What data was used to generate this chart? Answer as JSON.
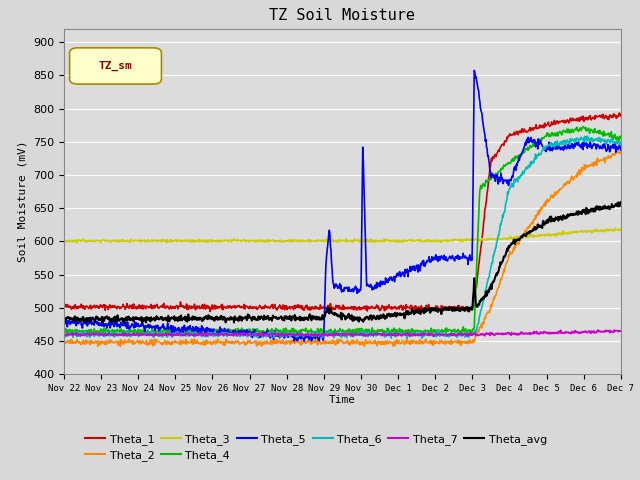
{
  "title": "TZ Soil Moisture",
  "xlabel": "Time",
  "ylabel": "Soil Moisture (mV)",
  "ylim": [
    400,
    920
  ],
  "yticks": [
    400,
    450,
    500,
    550,
    600,
    650,
    700,
    750,
    800,
    850,
    900
  ],
  "bg_color": "#dcdcdc",
  "legend_label": "TZ_sm",
  "series_colors": {
    "Theta_1": "#cc0000",
    "Theta_2": "#ff8800",
    "Theta_3": "#cccc00",
    "Theta_4": "#00bb00",
    "Theta_5": "#0000ff",
    "Theta_6": "#00bbbb",
    "Theta_7": "#cc00cc",
    "Theta_avg": "#000000"
  },
  "x_tick_labels": [
    "Nov 22",
    "Nov 23",
    "Nov 24",
    "Nov 25",
    "Nov 26",
    "Nov 27",
    "Nov 28",
    "Nov 29",
    "Nov 30",
    "Dec 1",
    "Dec 2",
    "Dec 3",
    "Dec 4",
    "Dec 5",
    "Dec 6",
    "Dec 7"
  ],
  "figsize": [
    6.4,
    4.8
  ],
  "dpi": 100
}
